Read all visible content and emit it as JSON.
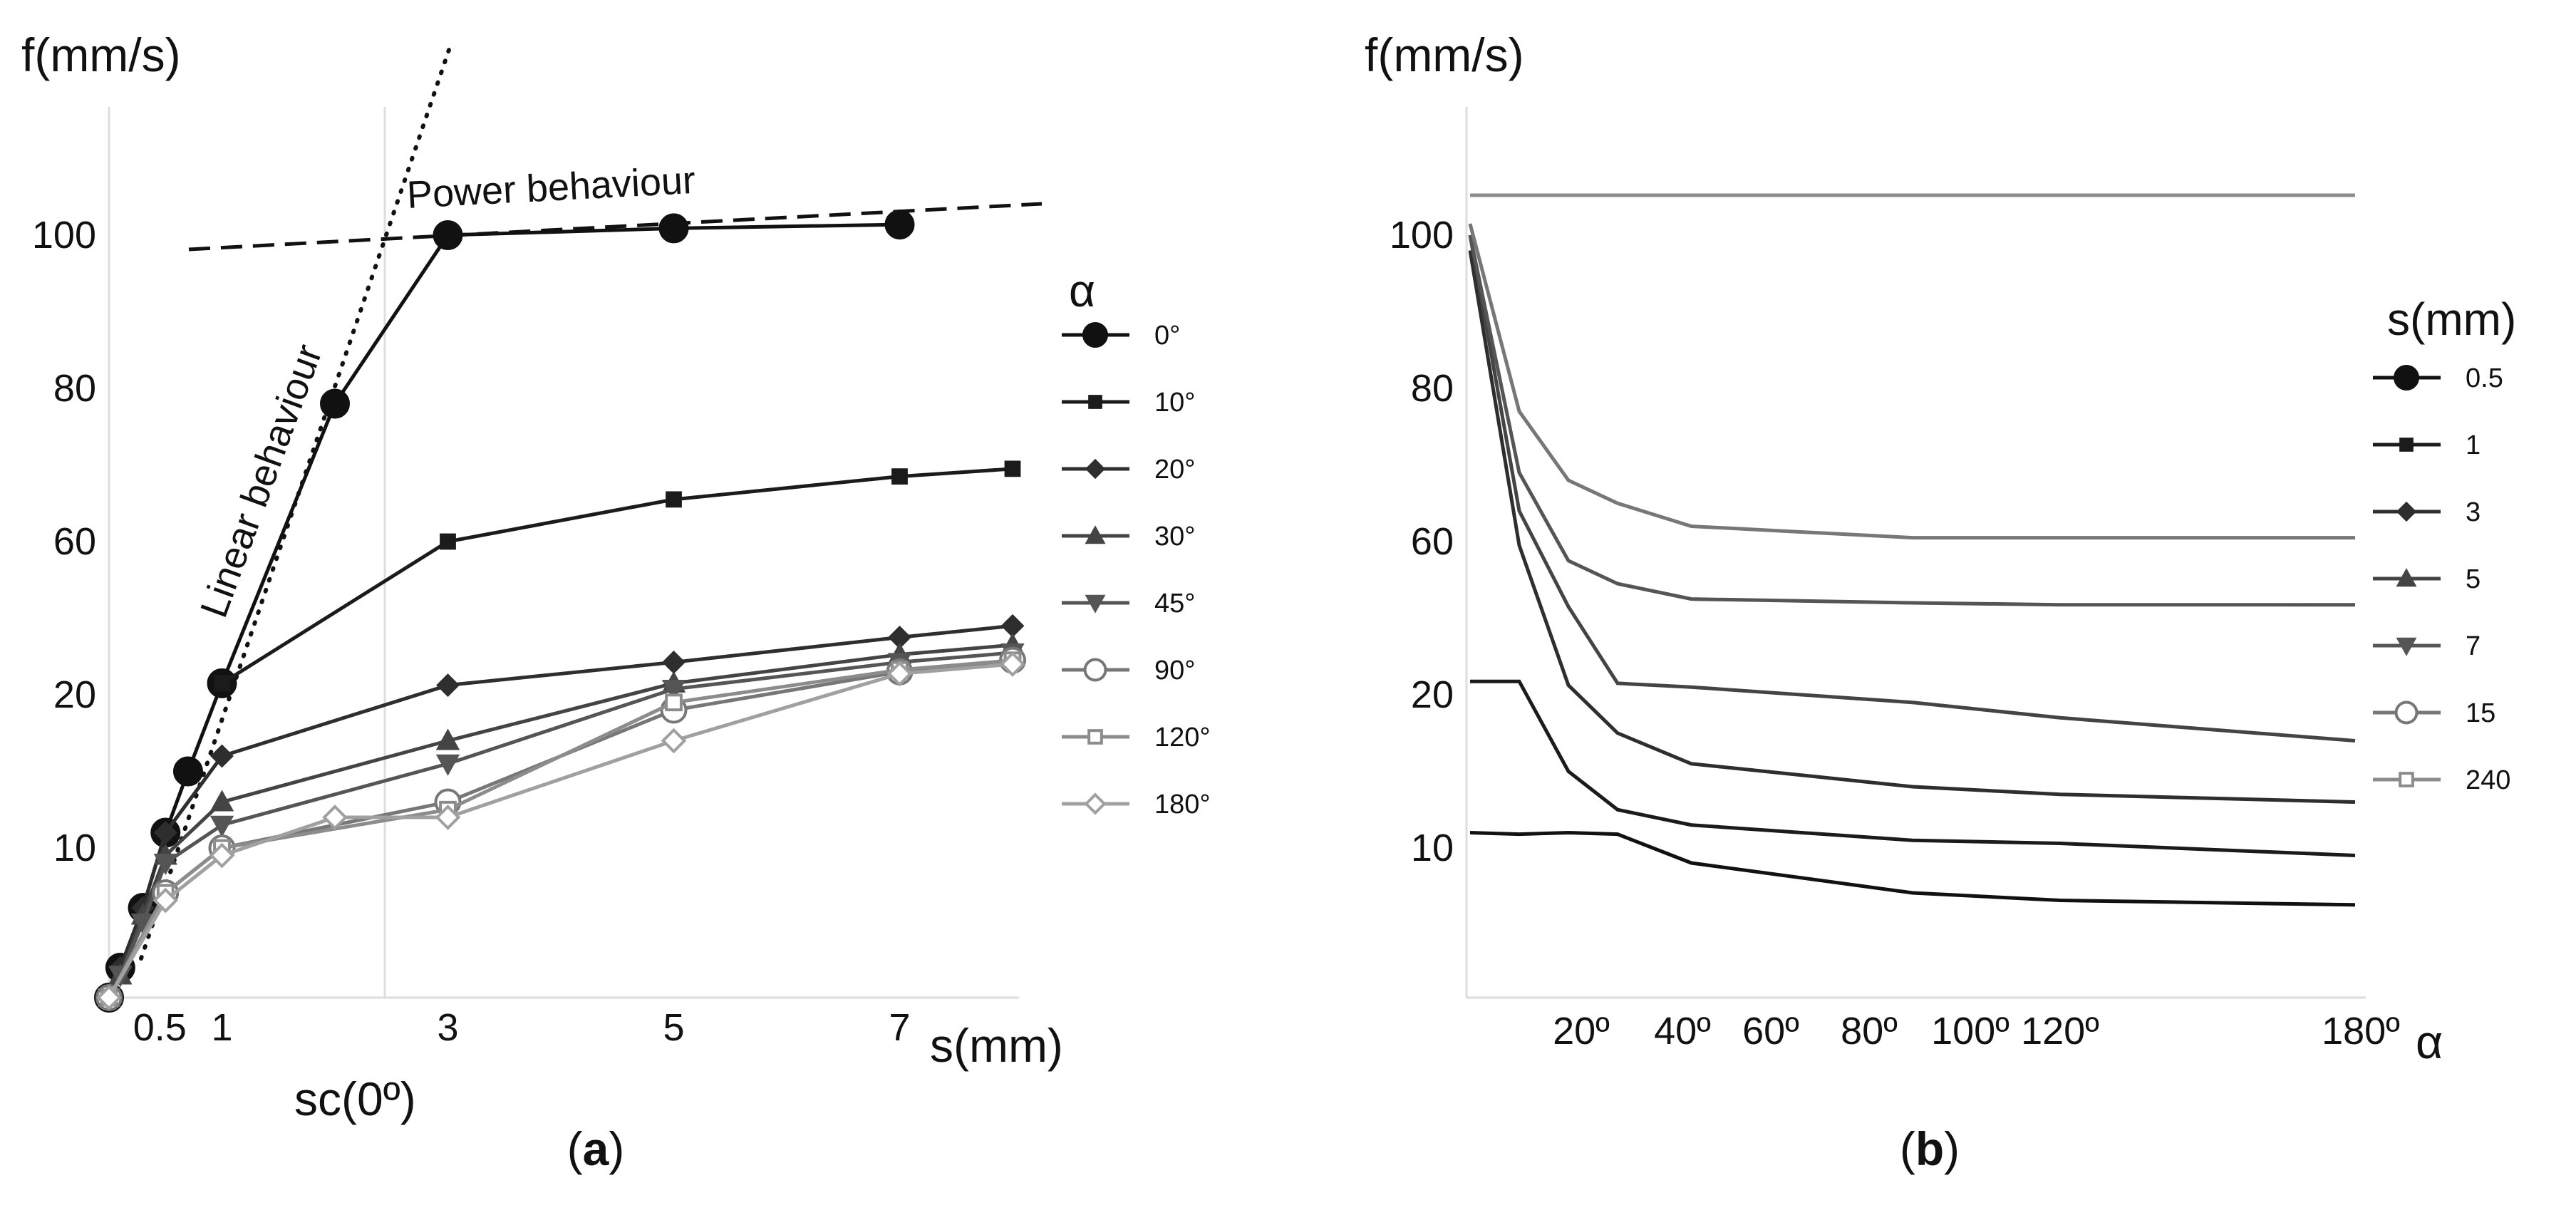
{
  "chart_data": [
    {
      "type": "line",
      "panel_label": "a",
      "ylabel": "f(mm/s)",
      "xlabel": "s(mm)",
      "xlim": [
        0,
        8
      ],
      "y_ticks": [
        "10",
        "20",
        "60",
        "80",
        "100"
      ],
      "x_ticks": [
        "0.5",
        "1",
        "3",
        "5",
        "7"
      ],
      "grid": false,
      "legend_title": "α",
      "legend_position": "right",
      "critical_label": "sc(0º)",
      "annotations": {
        "linear": "Linear behaviour",
        "power": "Power behaviour"
      },
      "series": [
        {
          "name": "0°",
          "marker": "circle-filled",
          "color": "#111111",
          "x": [
            0,
            0.1,
            0.3,
            0.5,
            0.7,
            1,
            2,
            3,
            5,
            7
          ],
          "y": [
            0,
            2,
            6,
            11,
            15,
            23,
            78,
            100,
            101.8,
            102.8
          ]
        },
        {
          "name": "10°",
          "marker": "square-filled",
          "color": "#1b1b1b",
          "x": [
            1,
            3,
            5,
            7,
            8
          ],
          "y": [
            23,
            60,
            65.5,
            68.5,
            69.5
          ]
        },
        {
          "name": "20°",
          "marker": "diamond-filled",
          "color": "#2e2e2e",
          "x": [
            0,
            0.1,
            0.3,
            0.5,
            1,
            3,
            5,
            7,
            8
          ],
          "y": [
            0,
            2,
            6,
            11,
            16,
            22.5,
            28.5,
            35,
            38
          ]
        },
        {
          "name": "30°",
          "marker": "triangle-up-filled",
          "color": "#444444",
          "x": [
            0,
            0.1,
            0.3,
            0.5,
            1,
            3,
            5,
            7,
            8
          ],
          "y": [
            0,
            1.5,
            5.5,
            9.5,
            13,
            17,
            23,
            30.5,
            33
          ]
        },
        {
          "name": "45°",
          "marker": "triangle-down-filled",
          "color": "#555555",
          "x": [
            0,
            0.1,
            0.3,
            0.5,
            1,
            3,
            5,
            7,
            8
          ],
          "y": [
            0,
            1.5,
            5,
            9,
            11.5,
            15.5,
            21.5,
            28.5,
            31
          ]
        },
        {
          "name": "90°",
          "marker": "circle-open",
          "color": "#777777",
          "x": [
            0,
            0.5,
            1,
            3,
            5,
            7,
            8
          ],
          "y": [
            0,
            7,
            10,
            13,
            19,
            26,
            29
          ]
        },
        {
          "name": "120°",
          "marker": "square-open",
          "color": "#8c8c8c",
          "x": [
            0,
            0.5,
            1,
            3,
            5,
            7,
            8
          ],
          "y": [
            0,
            7,
            10,
            12.5,
            19.5,
            26.5,
            29
          ]
        },
        {
          "name": "180°",
          "marker": "diamond-open",
          "color": "#a0a0a0",
          "x": [
            0,
            0.5,
            1,
            2,
            3,
            5,
            7,
            8
          ],
          "y": [
            0,
            6.5,
            9.5,
            12,
            12,
            17,
            25.5,
            28
          ]
        }
      ]
    },
    {
      "type": "line",
      "panel_label": "b",
      "ylabel": "f(mm/s)",
      "xlabel": "α",
      "xlim": [
        0,
        180
      ],
      "y_ticks": [
        "10",
        "20",
        "60",
        "80",
        "100"
      ],
      "x_ticks": [
        "20º",
        "40º",
        "60º",
        "80º",
        "100º",
        "120º",
        "180º"
      ],
      "grid": false,
      "legend_title": "s(mm)",
      "legend_position": "right",
      "x": [
        0,
        10,
        20,
        30,
        45,
        90,
        120,
        180
      ],
      "series": [
        {
          "name": "0.5",
          "marker": "circle-filled",
          "color": "#111111",
          "y": [
            11,
            10.9,
            11,
            10.9,
            9,
            7,
            6.5,
            6.2
          ]
        },
        {
          "name": "1",
          "marker": "square-filled",
          "color": "#1b1b1b",
          "y": [
            23.5,
            23.5,
            15,
            12.5,
            11.5,
            10.5,
            10.3,
            9.5
          ]
        },
        {
          "name": "3",
          "marker": "diamond-filled",
          "color": "#2e2e2e",
          "y": [
            98,
            59,
            22.5,
            17.5,
            15.5,
            14,
            13.5,
            13
          ]
        },
        {
          "name": "5",
          "marker": "triangle-up-filled",
          "color": "#444444",
          "y": [
            100,
            64,
            43,
            23,
            22,
            19.5,
            18.5,
            17
          ]
        },
        {
          "name": "7",
          "marker": "triangle-down-filled",
          "color": "#555555",
          "y": [
            100,
            69,
            55,
            49,
            45,
            44,
            43.5,
            43.5
          ]
        },
        {
          "name": "15",
          "marker": "circle-open",
          "color": "#777777",
          "y": [
            103,
            77,
            68,
            65,
            62,
            60.5,
            60.5,
            60.5
          ]
        },
        {
          "name": "240",
          "marker": "square-open",
          "color": "#8c8c8c",
          "y": [
            110.5,
            110.5,
            110.5,
            110.5,
            110.5,
            110.5,
            110.5,
            110.5
          ]
        }
      ]
    }
  ]
}
